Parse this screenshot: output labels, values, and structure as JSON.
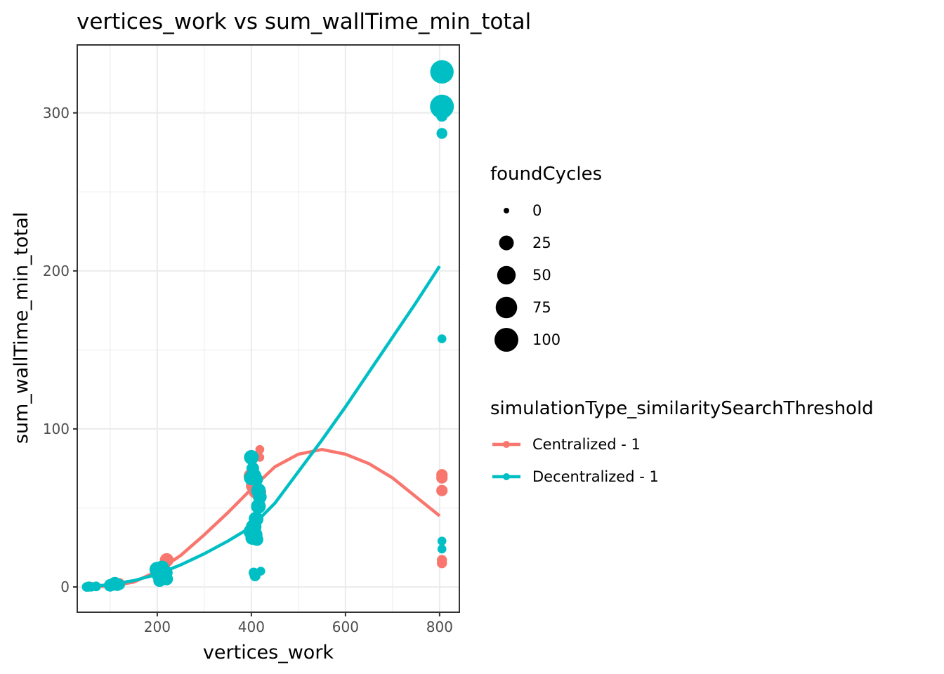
{
  "chart_data": {
    "type": "scatter",
    "title": "vertices_work  vs  sum_wallTime_min_total",
    "xlabel": "vertices_work",
    "ylabel": "sum_wallTime_min_total",
    "xlim": [
      30,
      842
    ],
    "ylim": [
      -16,
      343
    ],
    "x_ticks": [
      200,
      400,
      600,
      800
    ],
    "y_ticks": [
      0,
      100,
      200,
      300
    ],
    "x_tick_labels": [
      "200",
      "400",
      "600",
      "800"
    ],
    "y_tick_labels": [
      "0",
      "100",
      "200",
      "300"
    ],
    "grid": true,
    "legend_position": "right",
    "size_legend": {
      "title": "foundCycles",
      "entries": [
        {
          "label": "0",
          "value": 0
        },
        {
          "label": "25",
          "value": 25
        },
        {
          "label": "50",
          "value": 50
        },
        {
          "label": "75",
          "value": 75
        },
        {
          "label": "100",
          "value": 100
        }
      ]
    },
    "color_legend": {
      "title": "simulationType_similaritySearchThreshold"
    },
    "series": [
      {
        "name": "Centralized - 1",
        "color": "#F8766D",
        "points": [
          {
            "x": 50,
            "y": 0,
            "size": 2
          },
          {
            "x": 60,
            "y": 0.3,
            "size": 3
          },
          {
            "x": 70,
            "y": 0.5,
            "size": 2
          },
          {
            "x": 100,
            "y": 1.5,
            "size": 5
          },
          {
            "x": 110,
            "y": 2,
            "size": 8
          },
          {
            "x": 120,
            "y": 2.5,
            "size": 5
          },
          {
            "x": 205,
            "y": 11,
            "size": 10
          },
          {
            "x": 210,
            "y": 12,
            "size": 15
          },
          {
            "x": 215,
            "y": 14,
            "size": 12
          },
          {
            "x": 220,
            "y": 17,
            "size": 20
          },
          {
            "x": 220,
            "y": 9,
            "size": 10
          },
          {
            "x": 400,
            "y": 70,
            "size": 30
          },
          {
            "x": 403,
            "y": 64,
            "size": 20
          },
          {
            "x": 405,
            "y": 82,
            "size": 8
          },
          {
            "x": 408,
            "y": 60,
            "size": 15
          },
          {
            "x": 412,
            "y": 63,
            "size": 10
          },
          {
            "x": 418,
            "y": 87,
            "size": 3
          },
          {
            "x": 418,
            "y": 82,
            "size": 3
          },
          {
            "x": 420,
            "y": 60,
            "size": 8
          },
          {
            "x": 805,
            "y": 71,
            "size": 10
          },
          {
            "x": 805,
            "y": 69,
            "size": 10
          },
          {
            "x": 805,
            "y": 61,
            "size": 10
          },
          {
            "x": 805,
            "y": 17,
            "size": 6
          },
          {
            "x": 805,
            "y": 15,
            "size": 6
          }
        ],
        "fit": [
          {
            "x": 50,
            "y": 0
          },
          {
            "x": 100,
            "y": 0.5
          },
          {
            "x": 150,
            "y": 3
          },
          {
            "x": 200,
            "y": 10
          },
          {
            "x": 250,
            "y": 20
          },
          {
            "x": 300,
            "y": 33
          },
          {
            "x": 350,
            "y": 47
          },
          {
            "x": 400,
            "y": 62
          },
          {
            "x": 450,
            "y": 76
          },
          {
            "x": 500,
            "y": 84
          },
          {
            "x": 550,
            "y": 87
          },
          {
            "x": 600,
            "y": 84
          },
          {
            "x": 650,
            "y": 78
          },
          {
            "x": 700,
            "y": 69
          },
          {
            "x": 750,
            "y": 57
          },
          {
            "x": 800,
            "y": 45
          }
        ]
      },
      {
        "name": "Decentralized - 1",
        "color": "#00BFC4",
        "points": [
          {
            "x": 50,
            "y": 0,
            "size": 5
          },
          {
            "x": 55,
            "y": 0.2,
            "size": 6
          },
          {
            "x": 60,
            "y": 0,
            "size": 4
          },
          {
            "x": 70,
            "y": 0.3,
            "size": 5
          },
          {
            "x": 100,
            "y": 1,
            "size": 15
          },
          {
            "x": 105,
            "y": 1.5,
            "size": 10
          },
          {
            "x": 110,
            "y": 2,
            "size": 20
          },
          {
            "x": 115,
            "y": 1,
            "size": 10
          },
          {
            "x": 120,
            "y": 1.5,
            "size": 8
          },
          {
            "x": 200,
            "y": 11,
            "size": 30
          },
          {
            "x": 203,
            "y": 8,
            "size": 25
          },
          {
            "x": 205,
            "y": 4,
            "size": 15
          },
          {
            "x": 210,
            "y": 12,
            "size": 25
          },
          {
            "x": 213,
            "y": 6,
            "size": 20
          },
          {
            "x": 218,
            "y": 9,
            "size": 20
          },
          {
            "x": 220,
            "y": 5,
            "size": 15
          },
          {
            "x": 400,
            "y": 82,
            "size": 25
          },
          {
            "x": 403,
            "y": 75,
            "size": 15
          },
          {
            "x": 405,
            "y": 70,
            "size": 30
          },
          {
            "x": 400,
            "y": 69,
            "size": 25
          },
          {
            "x": 410,
            "y": 68,
            "size": 20
          },
          {
            "x": 415,
            "y": 61,
            "size": 25
          },
          {
            "x": 418,
            "y": 57,
            "size": 20
          },
          {
            "x": 415,
            "y": 51,
            "size": 25
          },
          {
            "x": 410,
            "y": 43,
            "size": 25
          },
          {
            "x": 405,
            "y": 38,
            "size": 30
          },
          {
            "x": 400,
            "y": 35,
            "size": 30
          },
          {
            "x": 408,
            "y": 33,
            "size": 25
          },
          {
            "x": 402,
            "y": 31,
            "size": 20
          },
          {
            "x": 412,
            "y": 30,
            "size": 15
          },
          {
            "x": 405,
            "y": 9,
            "size": 6
          },
          {
            "x": 408,
            "y": 7,
            "size": 8
          },
          {
            "x": 420,
            "y": 10,
            "size": 3
          },
          {
            "x": 805,
            "y": 326,
            "size": 95
          },
          {
            "x": 805,
            "y": 304,
            "size": 100
          },
          {
            "x": 805,
            "y": 298,
            "size": 10
          },
          {
            "x": 805,
            "y": 287,
            "size": 8
          },
          {
            "x": 805,
            "y": 157,
            "size": 3
          },
          {
            "x": 805,
            "y": 29,
            "size": 3
          },
          {
            "x": 805,
            "y": 24,
            "size": 3
          }
        ],
        "fit": [
          {
            "x": 50,
            "y": 0
          },
          {
            "x": 100,
            "y": 1.5
          },
          {
            "x": 150,
            "y": 4
          },
          {
            "x": 200,
            "y": 8
          },
          {
            "x": 250,
            "y": 14
          },
          {
            "x": 300,
            "y": 21
          },
          {
            "x": 350,
            "y": 29
          },
          {
            "x": 400,
            "y": 38
          },
          {
            "x": 450,
            "y": 53
          },
          {
            "x": 500,
            "y": 73
          },
          {
            "x": 550,
            "y": 93
          },
          {
            "x": 600,
            "y": 114
          },
          {
            "x": 650,
            "y": 136
          },
          {
            "x": 700,
            "y": 158
          },
          {
            "x": 750,
            "y": 180
          },
          {
            "x": 800,
            "y": 203
          }
        ]
      }
    ]
  }
}
